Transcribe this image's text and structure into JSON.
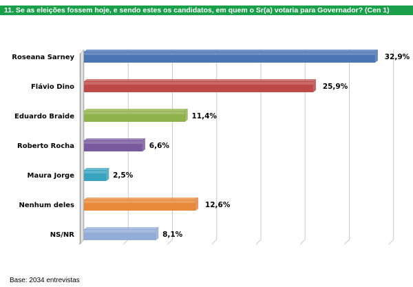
{
  "title": "11. Se as eleições fossem hoje, e sendo estes os candidatos, em quem o Sr(a) votaria para Governador? (Cen 1)",
  "footer": "Base: 2034 entrevistas",
  "colors": {
    "title_bg": "#1aa04a",
    "grid": "#c8c8c8"
  },
  "chart_data": {
    "type": "bar",
    "orientation": "horizontal",
    "title": "11. Se as eleições fossem hoje, e sendo estes os candidatos, em quem o Sr(a) votaria para Governador? (Cen 1)",
    "xlabel": "",
    "ylabel": "",
    "xlim": [
      0,
      35
    ],
    "grid": true,
    "categories": [
      "Roseana Sarney",
      "Flávio Dino",
      "Eduardo Braide",
      "Roberto Rocha",
      "Maura Jorge",
      "Nenhum deles",
      "NS/NR"
    ],
    "values": [
      32.9,
      25.9,
      11.4,
      6.6,
      2.5,
      12.6,
      8.1
    ],
    "value_labels": [
      "32,9%",
      "25,9%",
      "11,4%",
      "6,6%",
      "2,5%",
      "12,6%",
      "8,1%"
    ],
    "bar_colors": [
      "#4a76b4",
      "#bf4848",
      "#90b24a",
      "#7a5a9e",
      "#3aa4c0",
      "#e88a3a",
      "#94acd8"
    ]
  }
}
